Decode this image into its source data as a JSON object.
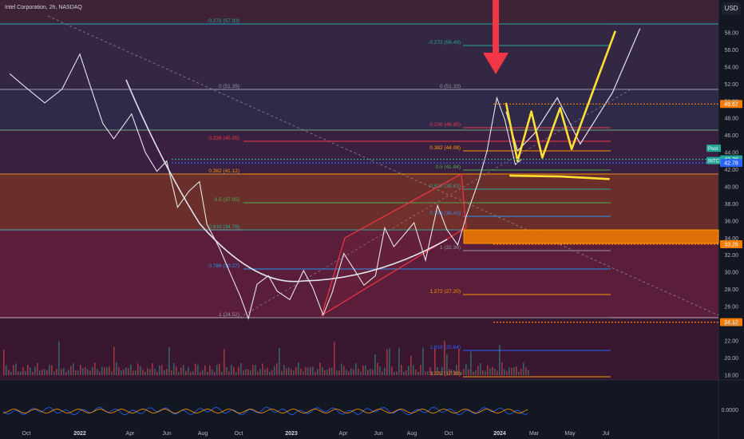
{
  "header": {
    "title": "Intel Corporation, 2h, NASDAQ"
  },
  "currency_button": "USD",
  "colors": {
    "background": "#131722",
    "yellow_path": "#ffe033",
    "red_arrow": "#f23645",
    "orange_zone": "#f57c00",
    "current_label": "#26a69a"
  },
  "chart_data": {
    "type": "line",
    "title": "Intel Corporation, 2h, NASDAQ",
    "xlabel": "",
    "ylabel": "",
    "x_ticks": [
      "Oct",
      "2022",
      "Apr",
      "Jun",
      "Aug",
      "Oct",
      "2023",
      "Apr",
      "Jun",
      "Aug",
      "Oct",
      "2024",
      "Mar",
      "May",
      "Jul"
    ],
    "y_ticks": [
      "58.00",
      "56.00",
      "54.00",
      "52.00",
      "50.00",
      "48.00",
      "46.00",
      "44.00",
      "42.00",
      "40.00",
      "38.00",
      "36.00",
      "34.00",
      "32.00",
      "30.00",
      "28.00",
      "26.00",
      "24.00",
      "22.00",
      "20.00",
      "18.00"
    ],
    "ylim": [
      17,
      59.5
    ],
    "price_series": [
      [
        "2021-09-01",
        53.2
      ],
      [
        "2021-10-01",
        51.5
      ],
      [
        "2021-11-01",
        49.8
      ],
      [
        "2021-12-01",
        51.4
      ],
      [
        "2022-01-01",
        55.5
      ],
      [
        "2022-01-20",
        51.6
      ],
      [
        "2022-02-10",
        47.4
      ],
      [
        "2022-03-01",
        45.6
      ],
      [
        "2022-04-01",
        48.5
      ],
      [
        "2022-04-25",
        44.0
      ],
      [
        "2022-05-15",
        41.8
      ],
      [
        "2022-06-01",
        43.0
      ],
      [
        "2022-06-20",
        37.6
      ],
      [
        "2022-07-10",
        39.5
      ],
      [
        "2022-07-28",
        40.6
      ],
      [
        "2022-08-10",
        35.6
      ],
      [
        "2022-09-01",
        32.8
      ],
      [
        "2022-09-20",
        29.8
      ],
      [
        "2022-10-07",
        27.2
      ],
      [
        "2022-10-21",
        24.6
      ],
      [
        "2022-11-05",
        28.6
      ],
      [
        "2022-11-25",
        29.6
      ],
      [
        "2022-12-10",
        27.8
      ],
      [
        "2023-01-01",
        26.8
      ],
      [
        "2023-01-25",
        30.2
      ],
      [
        "2023-02-10",
        28.2
      ],
      [
        "2023-02-28",
        25.0
      ],
      [
        "2023-03-15",
        27.5
      ],
      [
        "2023-04-05",
        32.2
      ],
      [
        "2023-04-25",
        30.1
      ],
      [
        "2023-05-10",
        28.5
      ],
      [
        "2023-05-30",
        29.6
      ],
      [
        "2023-06-15",
        35.2
      ],
      [
        "2023-07-01",
        33.0
      ],
      [
        "2023-07-20",
        34.5
      ],
      [
        "2023-08-05",
        35.8
      ],
      [
        "2023-08-25",
        31.4
      ],
      [
        "2023-09-15",
        37.8
      ],
      [
        "2023-10-01",
        35.0
      ],
      [
        "2023-10-20",
        33.2
      ],
      [
        "2023-11-05",
        36.8
      ],
      [
        "2023-11-25",
        40.6
      ],
      [
        "2023-12-10",
        44.2
      ],
      [
        "2023-12-27",
        50.4
      ],
      [
        "2024-01-10",
        47.8
      ],
      [
        "2024-01-28",
        42.6
      ],
      [
        "2024-02-08",
        43.2
      ]
    ],
    "projection_white": [
      [
        "2024-01-12",
        48.8
      ],
      [
        "2024-02-01",
        44.2
      ],
      [
        "2024-03-01",
        46.2
      ],
      [
        "2024-04-10",
        50.4
      ],
      [
        "2024-05-20",
        45.0
      ],
      [
        "2024-07-15",
        51.0
      ],
      [
        "2024-09-01",
        58.5
      ]
    ],
    "projection_yellow": [
      [
        "2024-01-12",
        49.8
      ],
      [
        "2024-02-01",
        43.0
      ],
      [
        "2024-02-25",
        48.8
      ],
      [
        "2024-03-15",
        43.4
      ],
      [
        "2024-04-15",
        49.2
      ],
      [
        "2024-05-05",
        44.4
      ],
      [
        "2024-06-20",
        52.8
      ],
      [
        "2024-07-20",
        58.2
      ]
    ],
    "yellow_support": [
      [
        "2024-01-18",
        41.3
      ],
      [
        "2024-04-15",
        41.2
      ],
      [
        "2024-07-10",
        40.9
      ]
    ],
    "levels": [
      {
        "value": 49.67,
        "label": "49.67",
        "color": "#f57c00"
      },
      {
        "value": 43.2,
        "label": "43.20",
        "color": "#26a69a"
      },
      {
        "value": 42.78,
        "label": "42.78",
        "color": "#2962ff"
      },
      {
        "value": 33.28,
        "label": "33.28",
        "color": "#f57c00"
      },
      {
        "value": 24.17,
        "label": "24.17",
        "color": "#f57c00"
      }
    ],
    "fib_left": [
      "-0.272 (57.93)",
      "0 (51.39)",
      "0.236 (45.05)",
      "0.382 (41.12)",
      "0.5 (37.95)",
      "0.618 (34.78)",
      "0.786 (30.27)",
      "1 (24.52)"
    ],
    "fib_right": [
      "-0.272 (56.49)",
      "0 (51.33)",
      "0.236 (46.85)",
      "0.382 (44.08)",
      "0.5 (41.84)",
      "0.618 (39.61)",
      "0.786 (36.41)",
      "1 (32.36)",
      "1.272 (27.20)",
      "1.618 (20.64)",
      "1.272 (17.39)"
    ],
    "current_labels": [
      "Pool",
      "INTC"
    ],
    "indicator_zero": "0.0000"
  }
}
